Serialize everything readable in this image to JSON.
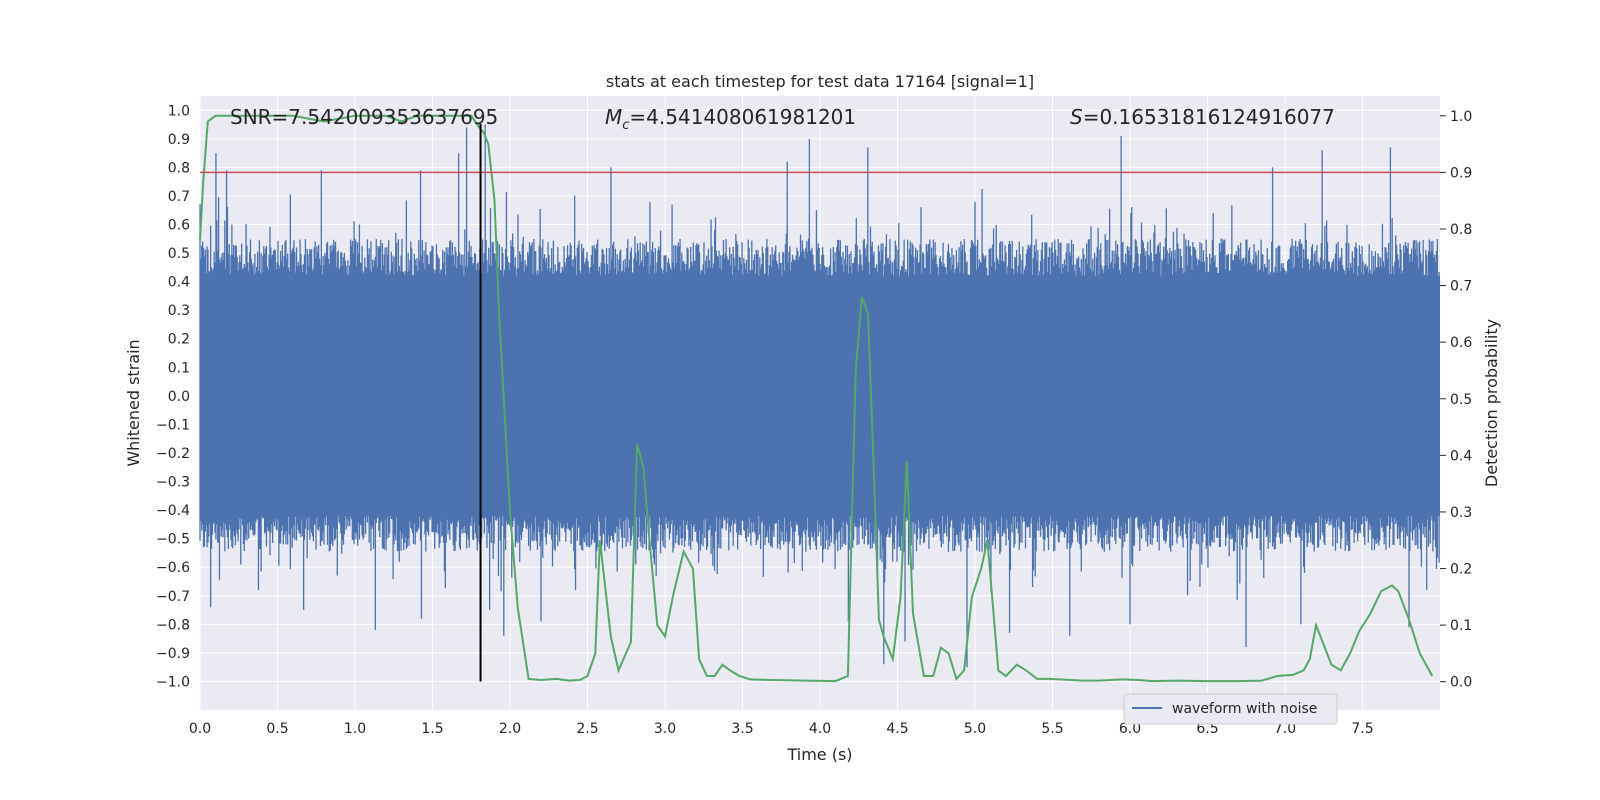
{
  "chart_data": {
    "type": "line",
    "title": "stats at each timestep for test data 17164 [signal=1]",
    "xlabel": "Time (s)",
    "ylabel_left": "Whitened strain",
    "ylabel_right": "Detection probability",
    "xlim": [
      0.0,
      8.0
    ],
    "ylim_left": [
      -1.1,
      1.05
    ],
    "ylim_right": [
      -0.05,
      1.035
    ],
    "x_ticks": [
      0.0,
      0.5,
      1.0,
      1.5,
      2.0,
      2.5,
      3.0,
      3.5,
      4.0,
      4.5,
      5.0,
      5.5,
      6.0,
      6.5,
      7.0,
      7.5
    ],
    "x_tick_labels": [
      "0.0",
      "0.5",
      "1.0",
      "1.5",
      "2.0",
      "2.5",
      "3.0",
      "3.5",
      "4.0",
      "4.5",
      "5.0",
      "5.5",
      "6.0",
      "6.5",
      "7.0",
      "7.5"
    ],
    "y_left_ticks": [
      -1.0,
      -0.9,
      -0.8,
      -0.7,
      -0.6,
      -0.5,
      -0.4,
      -0.3,
      -0.2,
      -0.1,
      0.0,
      0.1,
      0.2,
      0.3,
      0.4,
      0.5,
      0.6,
      0.7,
      0.8,
      0.9,
      1.0
    ],
    "y_left_tick_labels": [
      "−1.0",
      "−0.9",
      "−0.8",
      "−0.7",
      "−0.6",
      "−0.5",
      "−0.4",
      "−0.3",
      "−0.2",
      "−0.1",
      "0.0",
      "0.1",
      "0.2",
      "0.3",
      "0.4",
      "0.5",
      "0.6",
      "0.7",
      "0.8",
      "0.9",
      "1.0"
    ],
    "y_right_ticks": [
      0.0,
      0.1,
      0.2,
      0.3,
      0.4,
      0.5,
      0.6,
      0.7,
      0.8,
      0.9,
      1.0
    ],
    "y_right_tick_labels": [
      "0.0",
      "0.1",
      "0.2",
      "0.3",
      "0.4",
      "0.5",
      "0.6",
      "0.7",
      "0.8",
      "0.9",
      "1.0"
    ],
    "annotations": {
      "snr": "SNR=7.542009353637695",
      "mc_symbol": "M",
      "mc_sub": "c",
      "mc_value": "=4.541408061981201",
      "s_symbol": "S",
      "s_value": "=0.16531816124916077"
    },
    "legend": {
      "label": "waveform with noise",
      "placement": "lower-right"
    },
    "threshold_probability": 0.9,
    "event_time": 1.81,
    "waveform": {
      "name": "waveform with noise",
      "color": "#4c72b0",
      "duration": 8.0,
      "samples": 1400,
      "envelope_core_top": 0.42,
      "envelope_core_bottom": -0.42,
      "typical_peak_top": 0.55,
      "typical_peak_bottom": -0.55,
      "spikes": [
        {
          "t": 1.72,
          "v": 0.94
        },
        {
          "t": 1.84,
          "v": 0.95
        },
        {
          "t": 1.67,
          "v": 0.85
        },
        {
          "t": 0.1,
          "v": 0.85
        },
        {
          "t": 0.17,
          "v": 0.79
        },
        {
          "t": 0.78,
          "v": 0.79
        },
        {
          "t": 1.42,
          "v": 0.79
        },
        {
          "t": 3.79,
          "v": 0.82
        },
        {
          "t": 3.93,
          "v": 0.9
        },
        {
          "t": 5.94,
          "v": 0.91
        },
        {
          "t": 7.24,
          "v": 0.86
        },
        {
          "t": 7.68,
          "v": 0.87
        },
        {
          "t": 4.31,
          "v": 0.87
        },
        {
          "t": 6.92,
          "v": 0.8
        },
        {
          "t": 2.65,
          "v": 0.8
        },
        {
          "t": 0.07,
          "v": -0.74
        },
        {
          "t": 0.67,
          "v": -0.75
        },
        {
          "t": 1.13,
          "v": -0.82
        },
        {
          "t": 1.43,
          "v": -0.78
        },
        {
          "t": 1.87,
          "v": -0.75
        },
        {
          "t": 1.96,
          "v": -0.84
        },
        {
          "t": 2.2,
          "v": -0.79
        },
        {
          "t": 4.18,
          "v": -0.79
        },
        {
          "t": 4.41,
          "v": -0.94
        },
        {
          "t": 4.55,
          "v": -0.86
        },
        {
          "t": 4.95,
          "v": -0.95
        },
        {
          "t": 5.22,
          "v": -0.83
        },
        {
          "t": 5.61,
          "v": -0.84
        },
        {
          "t": 6.0,
          "v": -0.8
        },
        {
          "t": 6.75,
          "v": -0.88
        },
        {
          "t": 7.8,
          "v": -0.81
        },
        {
          "t": 7.1,
          "v": -0.8
        }
      ]
    },
    "detection_probability": {
      "name": "Detection probability",
      "color": "#55a868",
      "x": [
        0.0,
        0.02,
        0.05,
        0.1,
        0.2,
        0.4,
        0.6,
        0.8,
        1.0,
        1.2,
        1.3,
        1.4,
        1.5,
        1.6,
        1.7,
        1.75,
        1.8,
        1.83,
        1.86,
        1.9,
        1.93,
        2.0,
        2.05,
        2.12,
        2.2,
        2.3,
        2.38,
        2.45,
        2.5,
        2.55,
        2.58,
        2.65,
        2.7,
        2.78,
        2.82,
        2.86,
        2.9,
        2.95,
        3.0,
        3.05,
        3.12,
        3.18,
        3.22,
        3.27,
        3.32,
        3.37,
        3.42,
        3.48,
        3.55,
        3.7,
        3.9,
        4.1,
        4.18,
        4.23,
        4.27,
        4.31,
        4.35,
        4.38,
        4.41,
        4.47,
        4.52,
        4.56,
        4.6,
        4.67,
        4.73,
        4.78,
        4.83,
        4.88,
        4.93,
        4.98,
        5.04,
        5.08,
        5.15,
        5.2,
        5.27,
        5.33,
        5.4,
        5.48,
        5.55,
        5.62,
        5.7,
        5.8,
        5.95,
        6.05,
        6.15,
        6.3,
        6.5,
        6.7,
        6.85,
        6.95,
        7.05,
        7.12,
        7.16,
        7.2,
        7.3,
        7.36,
        7.42,
        7.48,
        7.55,
        7.62,
        7.69,
        7.73,
        7.8,
        7.87,
        7.95
      ],
      "y": [
        0.78,
        0.88,
        0.99,
        1.0,
        1.0,
        1.0,
        1.0,
        0.99,
        1.0,
        1.0,
        0.99,
        1.0,
        1.0,
        1.0,
        1.0,
        1.0,
        0.98,
        0.97,
        0.95,
        0.85,
        0.65,
        0.3,
        0.13,
        0.005,
        0.003,
        0.005,
        0.002,
        0.003,
        0.01,
        0.05,
        0.25,
        0.08,
        0.02,
        0.07,
        0.42,
        0.38,
        0.25,
        0.1,
        0.08,
        0.15,
        0.23,
        0.2,
        0.04,
        0.01,
        0.01,
        0.03,
        0.02,
        0.01,
        0.004,
        0.003,
        0.002,
        0.001,
        0.01,
        0.55,
        0.68,
        0.65,
        0.35,
        0.11,
        0.08,
        0.04,
        0.15,
        0.39,
        0.12,
        0.01,
        0.01,
        0.06,
        0.05,
        0.005,
        0.02,
        0.15,
        0.2,
        0.25,
        0.02,
        0.01,
        0.03,
        0.02,
        0.005,
        0.005,
        0.004,
        0.003,
        0.002,
        0.002,
        0.004,
        0.003,
        0.001,
        0.002,
        0.001,
        0.001,
        0.002,
        0.01,
        0.012,
        0.02,
        0.04,
        0.1,
        0.03,
        0.02,
        0.05,
        0.09,
        0.12,
        0.16,
        0.17,
        0.16,
        0.11,
        0.05,
        0.01
      ]
    }
  }
}
